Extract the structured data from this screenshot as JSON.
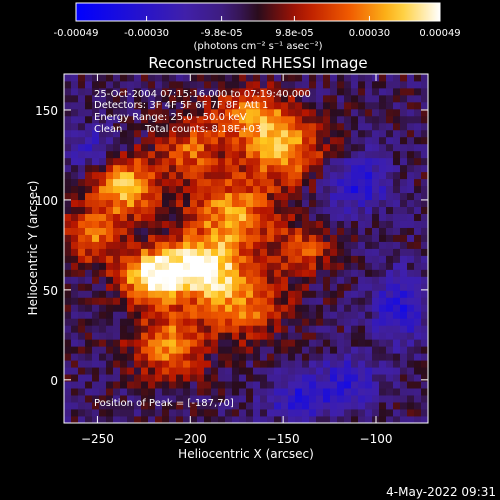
{
  "chart_data": {
    "type": "heatmap",
    "title": "Reconstructed RHESSI Image",
    "xlabel": "Heliocentric X (arcsec)",
    "ylabel": "Heliocentric Y (arcsec)",
    "xlim": [
      -268,
      -72
    ],
    "ylim": [
      -24,
      170
    ],
    "x_ticks": [
      -250,
      -200,
      -150,
      -100
    ],
    "y_ticks": [
      0,
      50,
      100,
      150
    ],
    "colorbar": {
      "min": -0.00049,
      "max": 0.00049,
      "tick_values": [
        -0.00049,
        -0.0003,
        -9.8e-05,
        9.8e-05,
        0.0003,
        0.00049
      ],
      "tick_labels": [
        "-0.00049",
        "-0.00030",
        "-9.8e-05",
        "9.8e-05",
        "0.00030",
        "0.00049"
      ],
      "unit_text": "(photons cm⁻² s⁻¹ asec⁻²)"
    },
    "annotations": {
      "time_range": "25-Oct-2004 07:15:16.000 to 07:19:40.000",
      "detectors": "Detectors: 3F 4F 5F 6F 7F 8F, Att 1",
      "energy_range": "Energy Range: 25.0 - 50.0 keV",
      "algorithm": "Clean",
      "total_counts": "Total counts: 8.18E+03",
      "peak": "Position of Peak = [-187,70]"
    },
    "peak_position": [
      -187,
      70
    ],
    "emission_sources": [
      {
        "x": -195,
        "y": 62,
        "sx": 16,
        "sy": 11,
        "amp": 1.0
      },
      {
        "x": -222,
        "y": 58,
        "sx": 12,
        "sy": 10,
        "amp": 0.85
      },
      {
        "x": -235,
        "y": 108,
        "sx": 13,
        "sy": 12,
        "amp": 0.78
      },
      {
        "x": -178,
        "y": 92,
        "sx": 16,
        "sy": 14,
        "amp": 0.7
      },
      {
        "x": -150,
        "y": 128,
        "sx": 16,
        "sy": 13,
        "amp": 0.72
      },
      {
        "x": -212,
        "y": 20,
        "sx": 14,
        "sy": 13,
        "amp": 0.62
      },
      {
        "x": -172,
        "y": 40,
        "sx": 16,
        "sy": 12,
        "amp": 0.6
      },
      {
        "x": -168,
        "y": 148,
        "sx": 15,
        "sy": 10,
        "amp": 0.55
      },
      {
        "x": -252,
        "y": 80,
        "sx": 11,
        "sy": 11,
        "amp": 0.55
      },
      {
        "x": -140,
        "y": 72,
        "sx": 11,
        "sy": 10,
        "amp": 0.48
      },
      {
        "x": -200,
        "y": 128,
        "sx": 12,
        "sy": 11,
        "amp": 0.5
      }
    ],
    "negative_sources": [
      {
        "x": -110,
        "y": 110,
        "sx": 12,
        "sy": 11,
        "amp": 0.55
      },
      {
        "x": -88,
        "y": 40,
        "sx": 10,
        "sy": 14,
        "amp": 0.5
      },
      {
        "x": -140,
        "y": -10,
        "sx": 14,
        "sy": 9,
        "amp": 0.45
      },
      {
        "x": -252,
        "y": 128,
        "sx": 10,
        "sy": 9,
        "amp": 0.4
      },
      {
        "x": -115,
        "y": 0,
        "sx": 12,
        "sy": 10,
        "amp": 0.4
      }
    ]
  },
  "footer": {
    "date": "4-May-2022 09:31"
  }
}
